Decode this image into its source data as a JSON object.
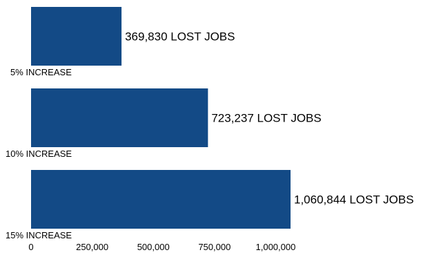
{
  "chart_data": {
    "type": "bar",
    "orientation": "horizontal",
    "categories": [
      "5% INCREASE",
      "10% INCREASE",
      "15% INCREASE"
    ],
    "values": [
      369830,
      723237,
      1060844
    ],
    "data_labels": [
      "369,830 LOST JOBS",
      "723,237 LOST JOBS",
      "1,060,844 LOST JOBS"
    ],
    "x_ticks": [
      0,
      250000,
      500000,
      750000,
      1000000
    ],
    "x_tick_labels": [
      "0",
      "250,000",
      "500,000",
      "750,000",
      "1,000,000"
    ],
    "xlim": [
      0,
      1060844
    ],
    "title": "",
    "xlabel": "",
    "ylabel": "",
    "grid": false,
    "legend": "none",
    "bar_color": "#134a86",
    "text_color": "#000000"
  }
}
